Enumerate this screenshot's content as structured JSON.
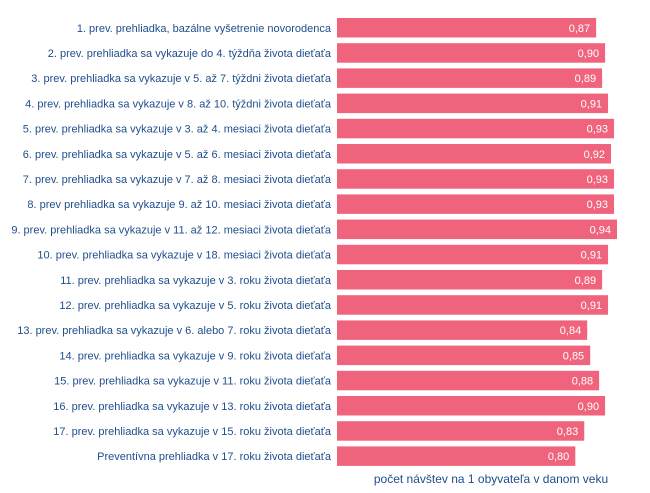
{
  "chart_data": {
    "type": "bar",
    "orientation": "horizontal",
    "categories": [
      "1. prev. prehliadka, bazálne vyšetrenie novorodenca",
      "2. prev. prehliadka sa vykazuje do 4. týždňa života dieťaťa",
      "3. prev. prehliadka sa vykazuje v 5. až 7. týždni života dieťaťa",
      "4. prev. prehliadka sa vykazuje v 8. až 10. týždni života dieťaťa",
      "5. prev. prehliadka sa vykazuje v 3. až 4. mesiaci života dieťaťa",
      "6. prev. prehliadka sa vykazuje v 5. až 6. mesiaci života dieťaťa",
      "7. prev. prehliadka sa vykazuje v 7. až 8. mesiaci života dieťaťa",
      "8. prev prehliadka sa vykazuje 9. až 10. mesiaci života dieťaťa",
      "9. prev. prehliadka sa vykazuje v 11. až 12. mesiaci života dieťaťa",
      "10. prev. prehliadka sa vykazuje v 18. mesiaci života dieťaťa",
      "11. prev. prehliadka sa vykazuje v 3. roku života dieťaťa",
      "12. prev. prehliadka sa vykazuje v 5. roku života dieťaťa",
      "13. prev. prehliadka sa vykazuje v 6. alebo 7. roku života dieťaťa",
      "14. prev. prehliadka sa vykazuje v 9. roku života dieťaťa",
      "15. prev. prehliadka sa vykazuje v 11. roku života dieťaťa",
      "16. prev. prehliadka sa vykazuje v 13. roku života dieťaťa",
      "17. prev. prehliadka sa vykazuje v 15. roku života dieťaťa",
      "Preventívna prehliadka v 17. roku života dieťaťa"
    ],
    "values": [
      0.87,
      0.9,
      0.89,
      0.91,
      0.93,
      0.92,
      0.93,
      0.93,
      0.94,
      0.91,
      0.89,
      0.91,
      0.84,
      0.85,
      0.88,
      0.9,
      0.83,
      0.8
    ],
    "value_labels": [
      "0,87",
      "0,90",
      "0,89",
      "0,91",
      "0,93",
      "0,92",
      "0,93",
      "0,93",
      "0,94",
      "0,91",
      "0,89",
      "0,91",
      "0,84",
      "0,85",
      "0,88",
      "0,90",
      "0,83",
      "0,80"
    ],
    "xlabel": "počet návštev na 1 obyvateľa v danom veku",
    "xlim": [
      0,
      0.94
    ],
    "bar_color": "#f0637d",
    "label_color": "#1f4e8c",
    "grid": false
  }
}
